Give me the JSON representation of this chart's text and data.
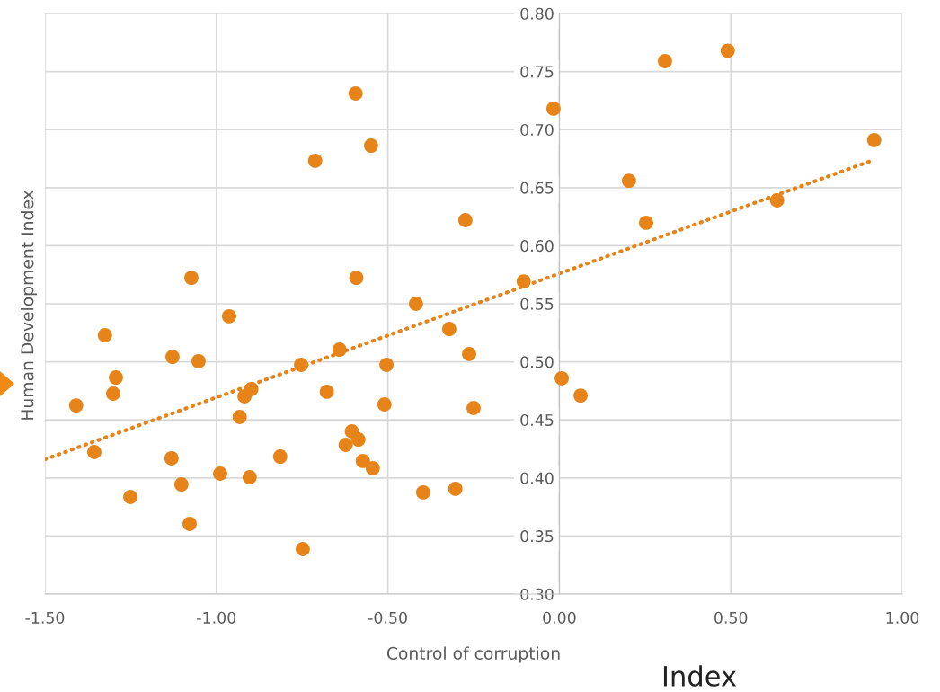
{
  "chart_data": {
    "type": "scatter",
    "xlabel": "Control of corruption",
    "ylabel": "Human Development Index",
    "annotations": [
      "Index"
    ],
    "series": [
      {
        "color": "#e6841a",
        "marker": "circle",
        "x": [
          -1.409,
          -1.356,
          -1.325,
          -1.293,
          -1.301,
          -1.251,
          -1.128,
          -1.131,
          -1.102,
          -1.078,
          -1.073,
          -1.052,
          -0.989,
          -0.963,
          -0.932,
          -0.918,
          -0.898,
          -0.903,
          -0.814,
          -0.753,
          -0.748,
          -0.712,
          -0.678,
          -0.641,
          -0.623,
          -0.605,
          -0.594,
          -0.592,
          -0.586,
          -0.573,
          -0.549,
          -0.544,
          -0.51,
          -0.504,
          -0.418,
          -0.397,
          -0.321,
          -0.303,
          -0.274,
          -0.263,
          -0.25,
          -0.104,
          -0.017,
          0.007,
          0.062,
          0.203,
          0.253,
          0.308,
          0.491,
          0.635,
          0.918
        ],
        "values": [
          0.4625,
          0.4223,
          0.5229,
          0.4865,
          0.4726,
          0.3836,
          0.5043,
          0.4169,
          0.3944,
          0.3604,
          0.5724,
          0.5005,
          0.4037,
          0.5392,
          0.4525,
          0.4703,
          0.4765,
          0.4006,
          0.4184,
          0.4974,
          0.3387,
          0.6731,
          0.4742,
          0.5105,
          0.4285,
          0.4401,
          0.7311,
          0.5724,
          0.4331,
          0.4146,
          0.6862,
          0.4084,
          0.4633,
          0.4974,
          0.55,
          0.3875,
          0.5283,
          0.3906,
          0.622,
          0.5067,
          0.4602,
          0.5693,
          0.718,
          0.4858,
          0.471,
          0.656,
          0.6197,
          0.759,
          0.768,
          0.639,
          0.691
        ]
      },
      {
        "type": "line",
        "color": "#e6841a",
        "line_style": "dotted",
        "x": [
          -1.5,
          0.918
        ],
        "values": [
          0.416,
          0.674
        ]
      }
    ],
    "xlim": [
      -1.5,
      1.0
    ],
    "xticks": [
      {
        "value": -1.5,
        "label": "-1.50"
      },
      {
        "value": -1.0,
        "label": "-1.00"
      },
      {
        "value": -0.5,
        "label": "-0.50"
      },
      {
        "value": 0,
        "label": "0.00"
      },
      {
        "value": 0.5,
        "label": "0.50"
      },
      {
        "value": 1.0,
        "label": "1.00"
      }
    ],
    "ylim": [
      0.3,
      0.8
    ],
    "yticks": [
      {
        "value": 0.3,
        "label": "0.30"
      },
      {
        "value": 0.35,
        "label": "0.35"
      },
      {
        "value": 0.4,
        "label": "0.40"
      },
      {
        "value": 0.45,
        "label": "0.45"
      },
      {
        "value": 0.5,
        "label": "0.50"
      },
      {
        "value": 0.55,
        "label": "0.55"
      },
      {
        "value": 0.6,
        "label": "0.60"
      },
      {
        "value": 0.65,
        "label": "0.65"
      },
      {
        "value": 0.7,
        "label": "0.70"
      },
      {
        "value": 0.75,
        "label": "0.75"
      },
      {
        "value": 0.8,
        "label": "0.80"
      }
    ],
    "grid": true,
    "legend": false
  }
}
